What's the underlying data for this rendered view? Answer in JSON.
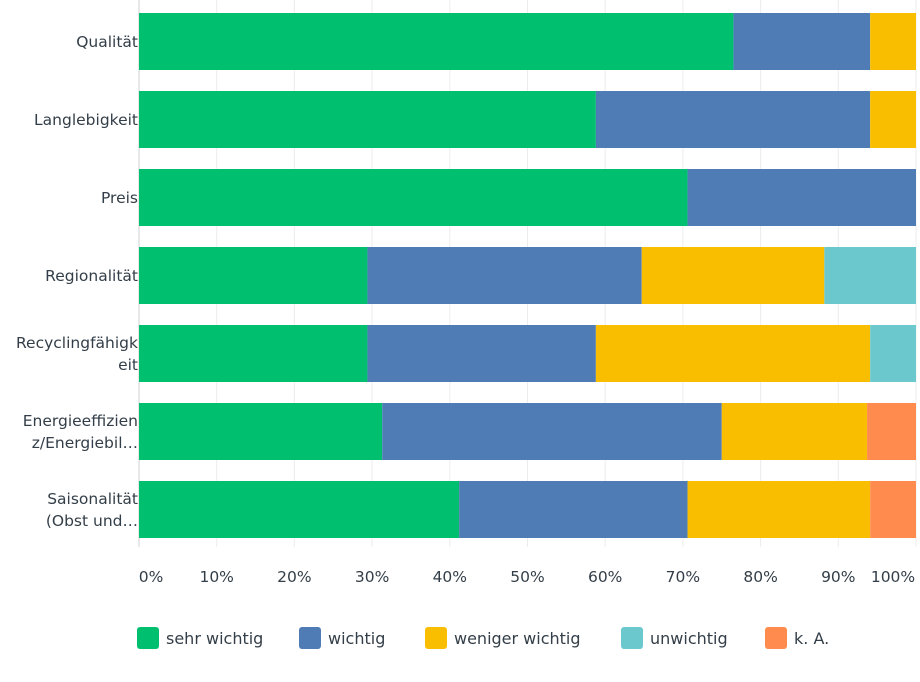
{
  "chart_data": {
    "type": "bar",
    "orientation": "horizontal",
    "stacked": true,
    "categories": [
      "Qualität",
      "Langlebigkeit",
      "Preis",
      "Regionalität",
      "Recyclingfähigk\neit",
      "Energieeffizien\nz/Energiebil…",
      "Saisonalität\n(Obst und…"
    ],
    "series": [
      {
        "name": "sehr wichtig",
        "color": "#00bf6f",
        "values": [
          76.5,
          58.8,
          70.6,
          29.4,
          29.4,
          31.3,
          41.2
        ]
      },
      {
        "name": "wichtig",
        "color": "#507cb6",
        "values": [
          17.6,
          35.3,
          29.4,
          35.3,
          29.4,
          43.7,
          29.4
        ]
      },
      {
        "name": "weniger wichtig",
        "color": "#f9be00",
        "values": [
          5.9,
          5.9,
          0,
          23.5,
          35.3,
          18.7,
          23.5
        ]
      },
      {
        "name": "unwichtig",
        "color": "#6bc8cd",
        "values": [
          0,
          0,
          0,
          11.8,
          5.9,
          0,
          0
        ]
      },
      {
        "name": "k. A.",
        "color": "#ff8b4f",
        "values": [
          0,
          0,
          0,
          0,
          0,
          6.3,
          5.9
        ]
      }
    ],
    "x_ticks": [
      "0%",
      "10%",
      "20%",
      "30%",
      "40%",
      "50%",
      "60%",
      "70%",
      "80%",
      "90%",
      "100%"
    ],
    "xlim": [
      0,
      100
    ],
    "grid": true,
    "legend_position": "bottom"
  }
}
